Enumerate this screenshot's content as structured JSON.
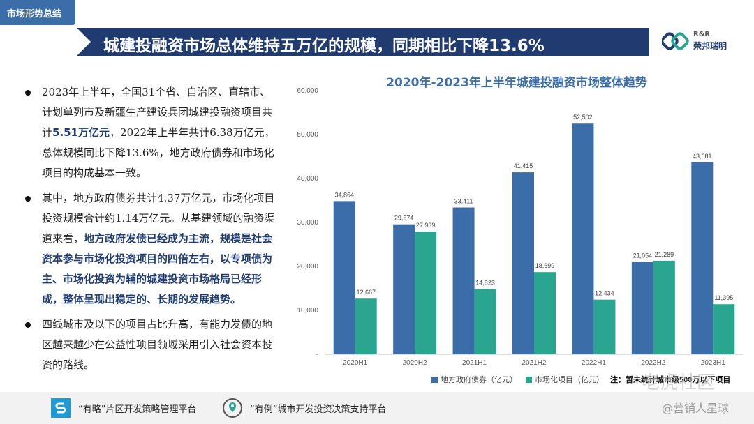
{
  "section_tag": "市场形势总结",
  "title": "城建投融资市场总体维持五万亿的规模，同期相比下降13.6%",
  "logo": {
    "en": "R&R",
    "cn": "荣邦瑞明",
    "icon": "linked-rings-logo-icon"
  },
  "bullets": [
    {
      "segments": [
        {
          "text": "2023年上半年，全国31个省、自治区、直辖市、计划单列市及新疆生产建设兵团城建投融资项目共计"
        },
        {
          "text": "5.51万亿元",
          "hl": true
        },
        {
          "text": "，2022年上半年共计6.38万亿元，总体规模同比下降13.6%，地方政府债券和市场化项目的构成基本一致。"
        }
      ]
    },
    {
      "segments": [
        {
          "text": "其中，地方政府债券共计4.37万亿元，市场化项目投资规模合计约1.14万亿元。从基建领域的融资渠道来看，"
        },
        {
          "text": "地方政府发债已经成为主流，规模是社会资本参与市场化投资项目的四倍左右，以专项债为主、市场化投资为辅的城建投资市场格局已经形成，整体呈现出稳定的、长期的发展趋势。",
          "hl": true
        }
      ]
    },
    {
      "segments": [
        {
          "text": "四线城市及以下的项目占比升高，有能力发债的地区越来越少在公益性项目领域采用引入社会资本投资的路线。"
        }
      ]
    }
  ],
  "chart_data": {
    "type": "bar",
    "title": "2020年-2023年上半年城建投融资市场整体趋势",
    "categories": [
      "2020H1",
      "2020H2",
      "2021H1",
      "2021H2",
      "2022H1",
      "2022H2",
      "2023H1"
    ],
    "series": [
      {
        "name": "地方政府债券（亿元）",
        "color": "#3b6ea8",
        "values": [
          34864,
          29574,
          33411,
          41415,
          52502,
          21054,
          43681
        ]
      },
      {
        "name": "市场化项目（亿元）",
        "color": "#2aa58f",
        "values": [
          12667,
          27939,
          14823,
          18699,
          12434,
          21289,
          11395
        ]
      }
    ],
    "ylim": [
      0,
      60000
    ],
    "yticks": [
      0,
      10000,
      20000,
      30000,
      40000,
      50000,
      60000
    ],
    "ytick_labels": [
      "-",
      "10,000",
      "20,000",
      "30,000",
      "40,000",
      "50,000",
      "60,000"
    ],
    "grid": false,
    "legend_position": "bottom",
    "note": "注：暂未统计城市级500万以下项目"
  },
  "footer": {
    "items": [
      {
        "label": "“有略”片区开发策略管理平台",
        "icon": "s-badge-icon"
      },
      {
        "label": "“有例”城市开发投资决策支持平台",
        "icon": "location-pin-icon"
      }
    ],
    "watermark_1": "老虎社区",
    "watermark_2": "@营销人星球"
  }
}
